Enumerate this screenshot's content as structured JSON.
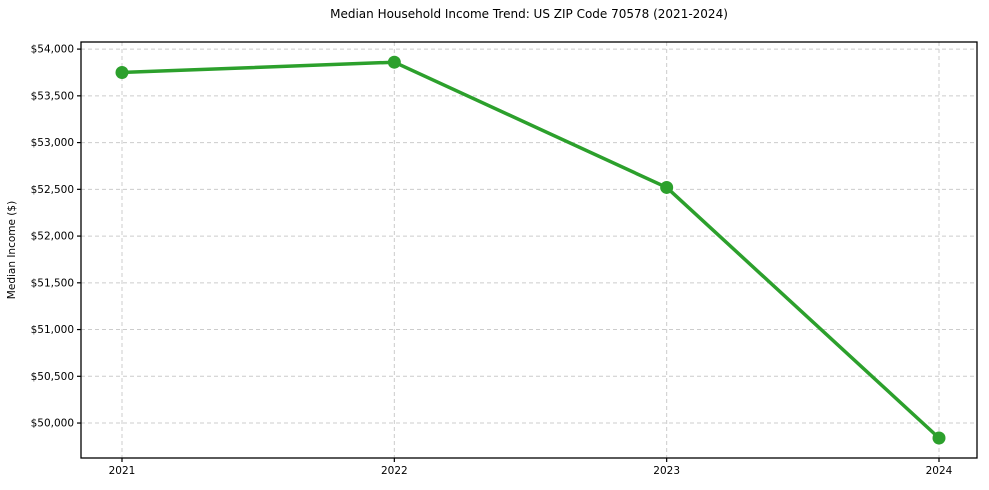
{
  "figure": {
    "title": "Median Household Income Trend: US ZIP Code 70578 (2021-2024)",
    "ylabel": "Median Income ($)"
  },
  "chart_data": {
    "type": "line",
    "title": "Median Household Income Trend: US ZIP Code 70578 (2021-2024)",
    "xlabel": "",
    "ylabel": "Median Income ($)",
    "categories": [
      "2021",
      "2022",
      "2023",
      "2024"
    ],
    "series": [
      {
        "name": "Median Household Income",
        "values": [
          53750,
          53860,
          52520,
          49840
        ],
        "color": "#2ca02c",
        "marker": "circle"
      }
    ],
    "ylim": [
      49626,
      54076
    ],
    "yticks": [
      50000,
      50500,
      51000,
      51500,
      52000,
      52500,
      53000,
      53500,
      54000
    ],
    "ytick_labels": [
      "$50,000",
      "$50,500",
      "$51,000",
      "$51,500",
      "$52,000",
      "$52,500",
      "$53,000",
      "$53,500",
      "$54,000"
    ],
    "grid": true,
    "grid_style": "dashed",
    "grid_color": "#cccccc",
    "spine_color": "#000000",
    "legend": false
  }
}
